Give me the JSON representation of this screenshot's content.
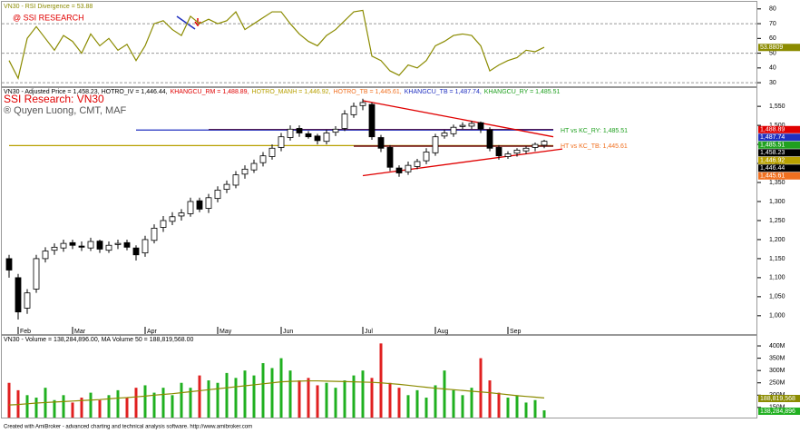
{
  "chart_data": [
    {
      "type": "line",
      "title": "VN30 - RSI Divergence = 53.88",
      "annotation": "@ SSI RESEARCH",
      "color": "#8b8b00",
      "values": [
        45,
        33,
        60,
        68,
        60,
        52,
        62,
        58,
        50,
        63,
        55,
        60,
        52,
        56,
        45,
        55,
        70,
        72,
        66,
        62,
        75,
        70,
        73,
        70,
        72,
        78,
        66,
        70,
        74,
        78,
        78,
        70,
        63,
        58,
        55,
        62,
        66,
        72,
        78,
        79,
        48,
        45,
        38,
        35,
        42,
        40,
        45,
        55,
        58,
        62,
        63,
        62,
        55,
        38,
        42,
        45,
        47,
        52,
        51,
        54
      ],
      "ylim": [
        27.6,
        84.8
      ],
      "yticks": [
        30,
        40,
        50,
        60,
        70,
        80
      ],
      "levels": [
        30,
        50,
        70
      ],
      "last_value": {
        "value": 53.8809,
        "label": "53.8809"
      }
    },
    {
      "type": "candlestick",
      "header": [
        {
          "text": "VN30 - Adjusted Price = 1,458.23, HOTRO_IV = 1,446.44,",
          "color": "#000000"
        },
        {
          "text": "KHANGCU_RM = 1,488.89,",
          "color": "#e00000"
        },
        {
          "text": "HOTRO_MANH = 1,446.92,",
          "color": "#b8a000"
        },
        {
          "text": "HOTRO_TB = 1,445.61,",
          "color": "#f07020"
        },
        {
          "text": "KHANGCU_TB = 1,487.74,",
          "color": "#2030c0"
        },
        {
          "text": "KHANGCU_RY = 1,485.51",
          "color": "#20a020"
        }
      ],
      "title": "SSI Research: VN30",
      "subtitle": "® Quyen Luong, CMT, MAF",
      "categories": [
        null,
        "Feb",
        null,
        null,
        null,
        null,
        null,
        "Mar",
        null,
        null,
        null,
        null,
        null,
        null,
        null,
        "Apr",
        null,
        null,
        null,
        null,
        null,
        null,
        null,
        "May",
        null,
        null,
        null,
        null,
        null,
        null,
        "Jun",
        null,
        null,
        null,
        null,
        null,
        null,
        null,
        null,
        "Jul",
        null,
        null,
        null,
        null,
        null,
        null,
        null,
        "Aug",
        null,
        null,
        null,
        null,
        null,
        null,
        null,
        "Sep",
        null,
        null,
        null,
        null
      ],
      "open": [
        1150,
        1100,
        1020,
        1070,
        1150,
        1172,
        1178,
        1192,
        1183,
        1178,
        1196,
        1172,
        1187,
        1192,
        1178,
        1165,
        1198,
        1232,
        1248,
        1262,
        1268,
        1302,
        1282,
        1308,
        1332,
        1343,
        1372,
        1383,
        1402,
        1418,
        1442,
        1468,
        1492,
        1478,
        1472,
        1458,
        1482,
        1492,
        1528,
        1552,
        1555,
        1468,
        1442,
        1388,
        1378,
        1392,
        1407,
        1428,
        1472,
        1478,
        1497,
        1498,
        1507,
        1488,
        1442,
        1418,
        1427,
        1433,
        1442,
        1448
      ],
      "high": [
        1160,
        1110,
        1070,
        1160,
        1180,
        1190,
        1200,
        1200,
        1195,
        1205,
        1200,
        1195,
        1200,
        1200,
        1185,
        1210,
        1240,
        1262,
        1272,
        1280,
        1310,
        1310,
        1320,
        1340,
        1355,
        1380,
        1395,
        1410,
        1430,
        1450,
        1480,
        1500,
        1500,
        1485,
        1478,
        1488,
        1498,
        1540,
        1560,
        1570,
        1560,
        1475,
        1448,
        1395,
        1405,
        1412,
        1440,
        1478,
        1488,
        1502,
        1508,
        1512,
        1510,
        1495,
        1448,
        1432,
        1440,
        1445,
        1455,
        1462
      ],
      "low": [
        1100,
        990,
        1005,
        1060,
        1140,
        1160,
        1168,
        1175,
        1170,
        1170,
        1165,
        1165,
        1175,
        1172,
        1145,
        1155,
        1190,
        1220,
        1238,
        1250,
        1260,
        1272,
        1270,
        1298,
        1322,
        1335,
        1360,
        1375,
        1392,
        1410,
        1432,
        1460,
        1470,
        1465,
        1450,
        1450,
        1472,
        1485,
        1520,
        1540,
        1462,
        1430,
        1380,
        1365,
        1370,
        1385,
        1398,
        1420,
        1465,
        1470,
        1490,
        1490,
        1480,
        1432,
        1410,
        1412,
        1418,
        1425,
        1432,
        1440
      ],
      "close": [
        1120,
        1010,
        1060,
        1150,
        1170,
        1180,
        1190,
        1185,
        1180,
        1195,
        1175,
        1185,
        1190,
        1180,
        1160,
        1200,
        1230,
        1250,
        1260,
        1270,
        1300,
        1280,
        1310,
        1330,
        1345,
        1370,
        1385,
        1400,
        1420,
        1440,
        1470,
        1490,
        1480,
        1470,
        1460,
        1480,
        1490,
        1530,
        1550,
        1560,
        1470,
        1440,
        1390,
        1375,
        1395,
        1405,
        1430,
        1470,
        1480,
        1495,
        1500,
        1505,
        1490,
        1440,
        1420,
        1425,
        1435,
        1440,
        1450,
        1458.23
      ],
      "ylim": [
        971,
        1598
      ],
      "yticks": [
        {
          "value": 1000,
          "label": "1,000"
        },
        {
          "value": 1050,
          "label": "1,050"
        },
        {
          "value": 1100,
          "label": "1,100"
        },
        {
          "value": 1150,
          "label": "1,150"
        },
        {
          "value": 1200,
          "label": "1,200"
        },
        {
          "value": 1250,
          "label": "1,250"
        },
        {
          "value": 1300,
          "label": "1,300"
        },
        {
          "value": 1350,
          "label": "1,350"
        },
        {
          "value": 1400,
          "label": "1,400"
        },
        {
          "value": 1450,
          "label": "1,450"
        },
        {
          "value": 1500,
          "label": "1,500"
        },
        {
          "value": 1550,
          "label": "1,550"
        }
      ],
      "levels": [
        {
          "value": 1488.89,
          "label": "1,488.89",
          "color": "#e00000",
          "line": "#701010",
          "from": 22
        },
        {
          "value": 1487.74,
          "label": "1,487.74",
          "color": "#2030c0",
          "line": "#2030c0",
          "from": 14
        },
        {
          "value": 1485.51,
          "label": "1,485.51",
          "color": "#20a020",
          "line": null,
          "from": 22
        },
        {
          "value": 1458.23,
          "label": "1,458.23",
          "color": "#000000",
          "line": null,
          "from": 0
        },
        {
          "value": 1446.92,
          "label": "1,446.92",
          "color": "#b8a000",
          "line": "#b8a000",
          "from": 0
        },
        {
          "value": 1446.44,
          "label": "1,446.44",
          "color": "#000000",
          "line": null,
          "from": 0
        },
        {
          "value": 1445.61,
          "label": "1,445.61",
          "color": "#f07020",
          "line": "#701010",
          "from": 38
        }
      ],
      "trendlines": [
        {
          "from": [
            39,
            1565
          ],
          "to": [
            60,
            1470
          ],
          "color": "#e00000"
        },
        {
          "from": [
            39,
            1368
          ],
          "to": [
            61,
            1438
          ],
          "color": "#e00000"
        }
      ],
      "annotations": [
        {
          "text": "HT vs KC_RY: 1,485.51",
          "value": 1485.51,
          "color": "#20a020"
        },
        {
          "text": "HT vs KC_TB: 1,445.61",
          "value": 1445.61,
          "color": "#f07020"
        }
      ]
    },
    {
      "type": "bar",
      "title": "VN30 - Volume = 138,284,896.00, MA Volume 50 = 188,819,568.00",
      "up_color": "#20b020",
      "down_color": "#e02020",
      "ma_color": "#8b8b00",
      "values": [
        250000000,
        220000000,
        200000000,
        190000000,
        230000000,
        180000000,
        200000000,
        170000000,
        190000000,
        210000000,
        180000000,
        200000000,
        220000000,
        190000000,
        230000000,
        240000000,
        210000000,
        230000000,
        200000000,
        250000000,
        230000000,
        280000000,
        260000000,
        250000000,
        290000000,
        270000000,
        300000000,
        280000000,
        330000000,
        310000000,
        350000000,
        300000000,
        260000000,
        270000000,
        240000000,
        250000000,
        230000000,
        260000000,
        280000000,
        300000000,
        270000000,
        410000000,
        250000000,
        230000000,
        200000000,
        220000000,
        190000000,
        240000000,
        300000000,
        220000000,
        200000000,
        230000000,
        350000000,
        260000000,
        210000000,
        190000000,
        200000000,
        170000000,
        180000000,
        138284896
      ],
      "ma": [
        160000000,
        162000000,
        165000000,
        168000000,
        170000000,
        172000000,
        174000000,
        176000000,
        178000000,
        180000000,
        182000000,
        185000000,
        188000000,
        190000000,
        193000000,
        196000000,
        200000000,
        203000000,
        206000000,
        210000000,
        214000000,
        218000000,
        222000000,
        226000000,
        230000000,
        234000000,
        238000000,
        242000000,
        246000000,
        250000000,
        254000000,
        256000000,
        257000000,
        258000000,
        258000000,
        257000000,
        256000000,
        255000000,
        254000000,
        253000000,
        252000000,
        250000000,
        247000000,
        244000000,
        240000000,
        236000000,
        232000000,
        228000000,
        225000000,
        222000000,
        219000000,
        216000000,
        213000000,
        210000000,
        206000000,
        202000000,
        198000000,
        195000000,
        192000000,
        188819568
      ],
      "ylim": [
        109000000,
        437000000
      ],
      "yticks": [
        {
          "value": 150000000,
          "label": "150M"
        },
        {
          "value": 200000000,
          "label": "200M"
        },
        {
          "value": 250000000,
          "label": "250M"
        },
        {
          "value": 300000000,
          "label": "300M"
        },
        {
          "value": 350000000,
          "label": "350M"
        },
        {
          "value": 400000000,
          "label": "400M"
        }
      ],
      "last_values": [
        {
          "value": 188819568,
          "label": "188,819,568",
          "color": "#8b8b00"
        },
        {
          "value": 138284896,
          "label": "138,284,896",
          "color": "#20b020"
        }
      ]
    }
  ],
  "footer": "Created with AmiBroker - advanced charting and technical analysis software. http://www.amibroker.com"
}
